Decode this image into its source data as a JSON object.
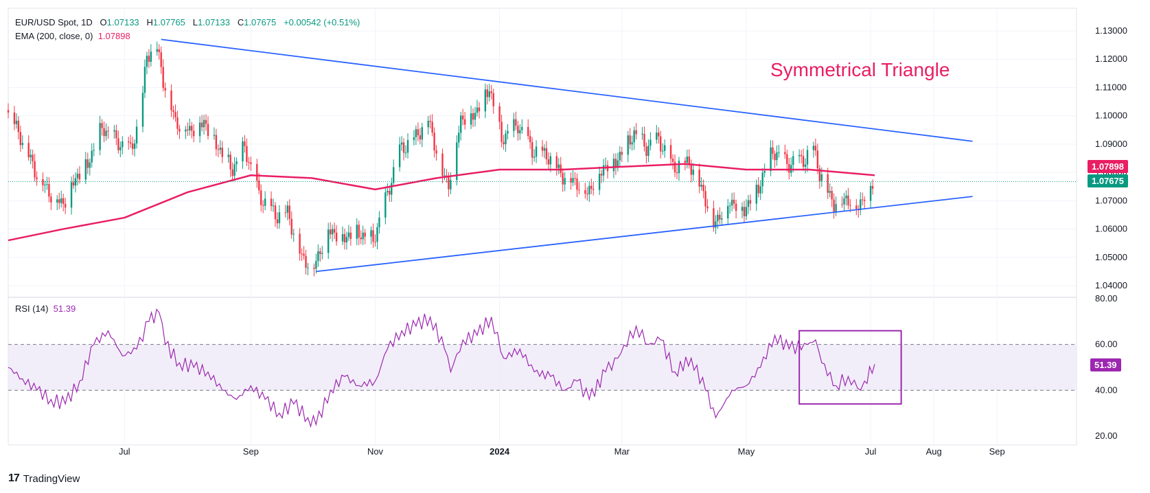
{
  "header": {
    "symbol": "EUR/USD Spot, 1D",
    "open_label": "O",
    "open": "1.07133",
    "high_label": "H",
    "high": "1.07765",
    "low_label": "L",
    "low": "1.07133",
    "close_label": "C",
    "close": "1.07675",
    "change": "+0.00542 (+0.51%)",
    "ema_label": "EMA (200, close, 0)",
    "ema_value": "1.07898",
    "rsi_label": "RSI (14)",
    "rsi_value": "51.39"
  },
  "annotation": "Symmetrical Triangle",
  "price_badges": {
    "ema": "1.07898",
    "last": "1.07675",
    "rsi": "51.39"
  },
  "brand": "TradingView",
  "colors": {
    "up": "#089981",
    "down": "#f23645",
    "ema": "#e91e63",
    "trend": "#2962ff",
    "rsi": "#9c27b0",
    "rsi_band": "#ede7f6",
    "annotation": "#e91e63"
  },
  "chart_data": [
    {
      "type": "candlestick",
      "title": "EUR/USD Spot, 1D",
      "x_ticks": [
        "Jul",
        "Sep",
        "Nov",
        "2024",
        "Mar",
        "May",
        "Jul",
        "Aug",
        "Sep"
      ],
      "y_ticks": [
        "1.04000",
        "1.05000",
        "1.06000",
        "1.07000",
        "1.08000",
        "1.09000",
        "1.10000",
        "1.11000",
        "1.12000",
        "1.13000"
      ],
      "ylim": [
        1.034,
        1.133
      ],
      "x_range": [
        "2023-05-05",
        "2024-10-10"
      ],
      "close_series": [
        [
          "2023-05-05",
          1.102
        ],
        [
          "2023-05-12",
          1.093
        ],
        [
          "2023-05-19",
          1.081
        ],
        [
          "2023-05-26",
          1.073
        ],
        [
          "2023-06-02",
          1.069
        ],
        [
          "2023-06-07",
          1.077
        ],
        [
          "2023-06-14",
          1.083
        ],
        [
          "2023-06-21",
          1.096
        ],
        [
          "2023-06-28",
          1.091
        ],
        [
          "2023-07-05",
          1.088
        ],
        [
          "2023-07-10",
          1.1
        ],
        [
          "2023-07-13",
          1.122
        ],
        [
          "2023-07-18",
          1.124
        ],
        [
          "2023-07-21",
          1.113
        ],
        [
          "2023-07-27",
          1.098
        ],
        [
          "2023-08-03",
          1.095
        ],
        [
          "2023-08-10",
          1.098
        ],
        [
          "2023-08-16",
          1.09
        ],
        [
          "2023-08-24",
          1.081
        ],
        [
          "2023-08-30",
          1.089
        ],
        [
          "2023-09-06",
          1.072
        ],
        [
          "2023-09-14",
          1.065
        ],
        [
          "2023-09-20",
          1.066
        ],
        [
          "2023-09-27",
          1.05
        ],
        [
          "2023-10-03",
          1.047
        ],
        [
          "2023-10-10",
          1.06
        ],
        [
          "2023-10-17",
          1.057
        ],
        [
          "2023-10-24",
          1.059
        ],
        [
          "2023-11-01",
          1.056
        ],
        [
          "2023-11-07",
          1.07
        ],
        [
          "2023-11-14",
          1.088
        ],
        [
          "2023-11-21",
          1.092
        ],
        [
          "2023-11-28",
          1.099
        ],
        [
          "2023-12-05",
          1.08
        ],
        [
          "2023-12-08",
          1.076
        ],
        [
          "2023-12-14",
          1.099
        ],
        [
          "2023-12-21",
          1.101
        ],
        [
          "2023-12-28",
          1.11
        ],
        [
          "2024-01-03",
          1.092
        ],
        [
          "2024-01-11",
          1.097
        ],
        [
          "2024-01-18",
          1.088
        ],
        [
          "2024-01-26",
          1.086
        ],
        [
          "2024-02-02",
          1.079
        ],
        [
          "2024-02-08",
          1.077
        ],
        [
          "2024-02-14",
          1.073
        ],
        [
          "2024-02-22",
          1.082
        ],
        [
          "2024-02-28",
          1.084
        ],
        [
          "2024-03-08",
          1.094
        ],
        [
          "2024-03-14",
          1.089
        ],
        [
          "2024-03-20",
          1.092
        ],
        [
          "2024-03-27",
          1.082
        ],
        [
          "2024-04-04",
          1.084
        ],
        [
          "2024-04-11",
          1.073
        ],
        [
          "2024-04-16",
          1.062
        ],
        [
          "2024-04-24",
          1.07
        ],
        [
          "2024-05-01",
          1.067
        ],
        [
          "2024-05-08",
          1.075
        ],
        [
          "2024-05-15",
          1.088
        ],
        [
          "2024-05-22",
          1.083
        ],
        [
          "2024-05-31",
          1.085
        ],
        [
          "2024-06-04",
          1.089
        ],
        [
          "2024-06-07",
          1.08
        ],
        [
          "2024-06-14",
          1.069
        ],
        [
          "2024-06-20",
          1.071
        ],
        [
          "2024-06-26",
          1.068
        ],
        [
          "2024-06-28",
          1.071
        ],
        [
          "2024-07-03",
          1.0767
        ]
      ],
      "ema_200": [
        [
          "2023-05-05",
          1.056
        ],
        [
          "2023-06-01",
          1.06
        ],
        [
          "2023-07-01",
          1.064
        ],
        [
          "2023-08-01",
          1.073
        ],
        [
          "2023-09-01",
          1.079
        ],
        [
          "2023-10-01",
          1.078
        ],
        [
          "2023-11-01",
          1.074
        ],
        [
          "2023-12-01",
          1.078
        ],
        [
          "2024-01-01",
          1.081
        ],
        [
          "2024-02-01",
          1.081
        ],
        [
          "2024-03-01",
          1.082
        ],
        [
          "2024-04-01",
          1.083
        ],
        [
          "2024-05-01",
          1.081
        ],
        [
          "2024-06-01",
          1.081
        ],
        [
          "2024-07-03",
          1.079
        ]
      ],
      "trendlines": [
        {
          "from": [
            "2023-07-19",
            1.127
          ],
          "to": [
            "2024-08-20",
            1.091
          ]
        },
        {
          "from": [
            "2023-10-03",
            1.045
          ],
          "to": [
            "2024-08-20",
            1.0715
          ]
        }
      ],
      "last_price": 1.07675
    },
    {
      "type": "line",
      "title": "RSI (14)",
      "y_ticks": [
        "20.00",
        "40.00",
        "60.00",
        "80.00"
      ],
      "ylim": [
        20,
        80
      ],
      "bands": [
        40,
        60
      ],
      "series": [
        [
          "2023-05-05",
          50
        ],
        [
          "2023-05-12",
          45
        ],
        [
          "2023-05-19",
          40
        ],
        [
          "2023-05-26",
          36
        ],
        [
          "2023-06-02",
          34
        ],
        [
          "2023-06-09",
          44
        ],
        [
          "2023-06-16",
          60
        ],
        [
          "2023-06-23",
          66
        ],
        [
          "2023-06-30",
          55
        ],
        [
          "2023-07-07",
          58
        ],
        [
          "2023-07-13",
          70
        ],
        [
          "2023-07-18",
          74
        ],
        [
          "2023-07-21",
          60
        ],
        [
          "2023-07-28",
          52
        ],
        [
          "2023-08-04",
          50
        ],
        [
          "2023-08-11",
          48
        ],
        [
          "2023-08-18",
          40
        ],
        [
          "2023-08-25",
          36
        ],
        [
          "2023-09-01",
          42
        ],
        [
          "2023-09-08",
          36
        ],
        [
          "2023-09-15",
          30
        ],
        [
          "2023-09-22",
          34
        ],
        [
          "2023-09-29",
          28
        ],
        [
          "2023-10-03",
          25
        ],
        [
          "2023-10-10",
          40
        ],
        [
          "2023-10-17",
          46
        ],
        [
          "2023-10-24",
          42
        ],
        [
          "2023-11-01",
          44
        ],
        [
          "2023-11-07",
          58
        ],
        [
          "2023-11-14",
          66
        ],
        [
          "2023-11-21",
          68
        ],
        [
          "2023-11-28",
          72
        ],
        [
          "2023-12-05",
          58
        ],
        [
          "2023-12-08",
          48
        ],
        [
          "2023-12-14",
          62
        ],
        [
          "2023-12-21",
          64
        ],
        [
          "2023-12-28",
          72
        ],
        [
          "2024-01-03",
          54
        ],
        [
          "2024-01-11",
          58
        ],
        [
          "2024-01-18",
          48
        ],
        [
          "2024-01-26",
          46
        ],
        [
          "2024-02-02",
          40
        ],
        [
          "2024-02-08",
          44
        ],
        [
          "2024-02-14",
          36
        ],
        [
          "2024-02-22",
          48
        ],
        [
          "2024-02-28",
          54
        ],
        [
          "2024-03-08",
          68
        ],
        [
          "2024-03-14",
          60
        ],
        [
          "2024-03-20",
          62
        ],
        [
          "2024-03-27",
          48
        ],
        [
          "2024-04-04",
          54
        ],
        [
          "2024-04-11",
          40
        ],
        [
          "2024-04-16",
          28
        ],
        [
          "2024-04-24",
          40
        ],
        [
          "2024-05-01",
          42
        ],
        [
          "2024-05-08",
          50
        ],
        [
          "2024-05-15",
          64
        ],
        [
          "2024-05-22",
          58
        ],
        [
          "2024-05-31",
          60
        ],
        [
          "2024-06-04",
          62
        ],
        [
          "2024-06-07",
          52
        ],
        [
          "2024-06-14",
          42
        ],
        [
          "2024-06-20",
          46
        ],
        [
          "2024-06-26",
          40
        ],
        [
          "2024-06-28",
          44
        ],
        [
          "2024-07-03",
          51.39
        ]
      ],
      "highlight_box": {
        "from": [
          "2024-05-27",
          66
        ],
        "to": [
          "2024-07-16",
          34
        ]
      }
    }
  ]
}
